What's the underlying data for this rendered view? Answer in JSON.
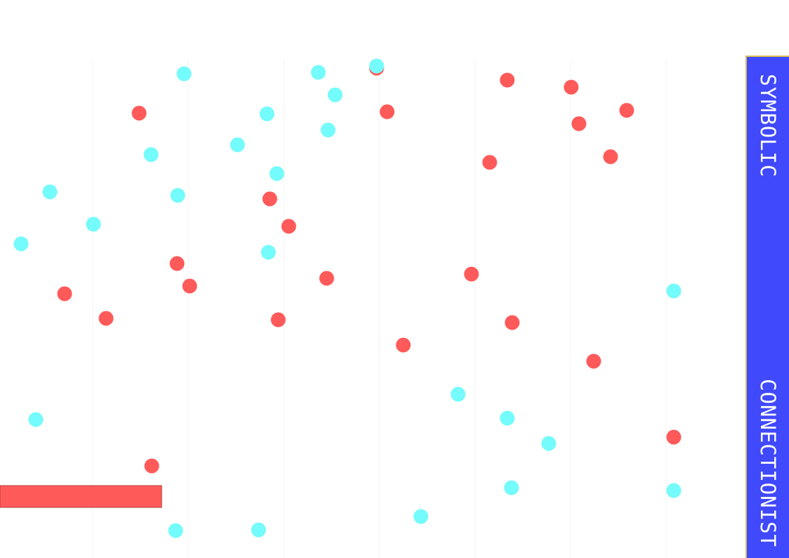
{
  "colors": {
    "background": "#ffffff",
    "gridline": "#f3f3f3",
    "symbolic_dot": "#ff5a5a",
    "connectionist_dot": "#74fbfb",
    "panel": "#4049fb",
    "panel_border": "#d9c25a",
    "bar": "#ff5a5a",
    "bar_border": "#b03a3a"
  },
  "side_panel": {
    "top_label": "SYMBOLIC",
    "bottom_label": "CONNECTIONIST"
  },
  "bar": {
    "level": 0.205
  }
}
